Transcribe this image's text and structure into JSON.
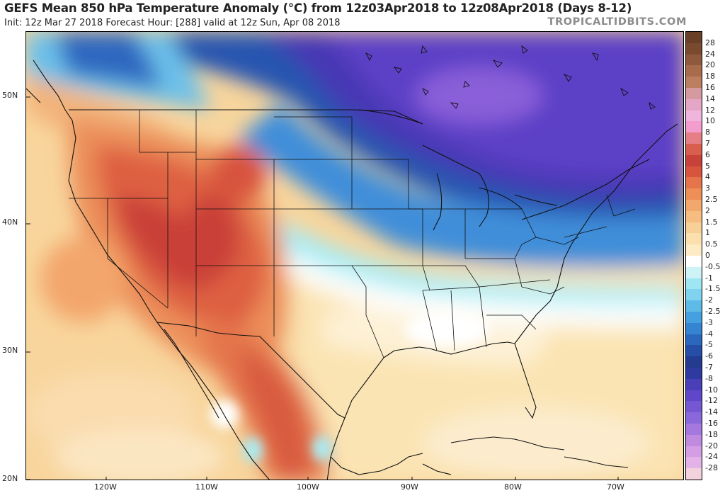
{
  "header": {
    "title": "GEFS Mean 850 hPa Temperature Anomaly (°C) from 12z03Apr2018 to 12z08Apr2018 (Days 8-12)",
    "subtitle": "Init: 12z Mar 27 2018   Forecast Hour: [288]   valid at 12z Sun, Apr 08 2018",
    "site": "TROPICALTIDBITS.COM"
  },
  "axes": {
    "lat_labels": [
      "50N",
      "40N",
      "30N",
      "20N"
    ],
    "lon_labels": [
      "120W",
      "110W",
      "100W",
      "90W",
      "80W",
      "70W"
    ]
  },
  "colorbar": {
    "labels": [
      "28",
      "24",
      "20",
      "18",
      "16",
      "14",
      "12",
      "10",
      "8",
      "7",
      "6",
      "5",
      "4",
      "3",
      "2.5",
      "2",
      "1.5",
      "1",
      "0.5",
      "0",
      "-0.5",
      "-1",
      "-1.5",
      "-2",
      "-2.5",
      "-3",
      "-4",
      "-5",
      "-6",
      "-7",
      "-8",
      "-10",
      "-12",
      "-14",
      "-16",
      "-18",
      "-20",
      "-24",
      "-28"
    ],
    "colors": [
      "#7a4a2e",
      "#8f5a3c",
      "#a66c4c",
      "#bb7e5e",
      "#d49aa0",
      "#e3a6c6",
      "#f0b5dc",
      "#f59ccf",
      "#e67e86",
      "#d85f4d",
      "#c8413a",
      "#d8543c",
      "#e6744a",
      "#ef8f58",
      "#f2a86c",
      "#f6bc80",
      "#f8cf96",
      "#fbe0ad",
      "#fcebc4",
      "#ffffff",
      "#cdf3f6",
      "#9ee6f2",
      "#7fd3ee",
      "#5ebbe8",
      "#44a0de",
      "#3484d1",
      "#2a67bd",
      "#264ea6",
      "#233c8f",
      "#2f3aa0",
      "#4a3fb8",
      "#6047c9",
      "#7556d3",
      "#8a67da",
      "#a478de",
      "#bf8ae0",
      "#d49de4",
      "#e3b3e8",
      "#f2d2dc"
    ]
  },
  "map": {
    "features": [
      "temperature-anomaly-field",
      "coastlines",
      "country-borders",
      "state-borders"
    ]
  }
}
